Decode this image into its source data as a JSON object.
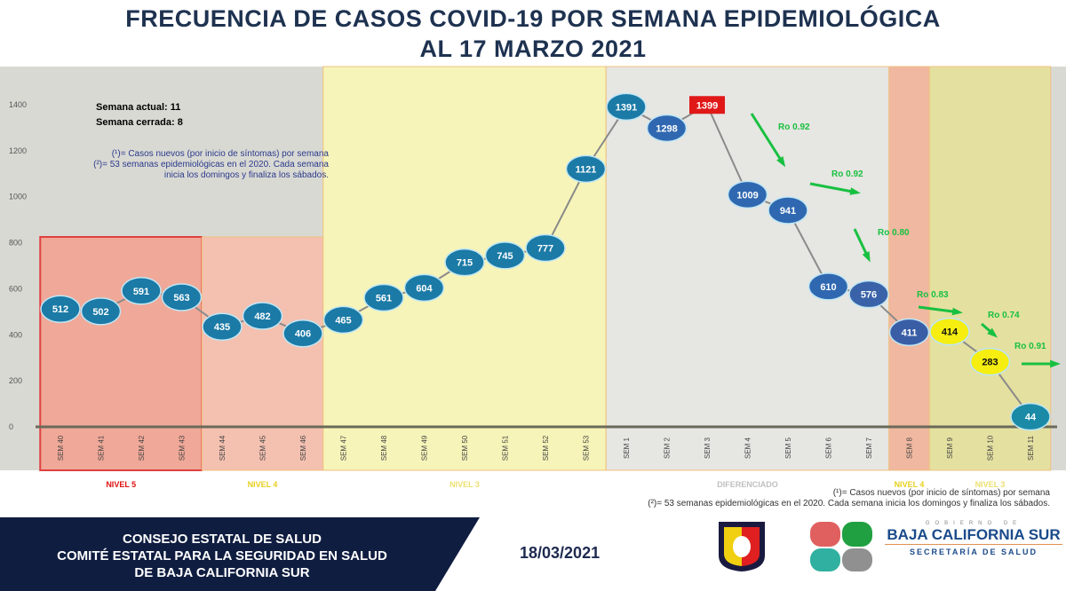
{
  "title_line1": "FRECUENCIA DE CASOS COVID-19 POR SEMANA EPIDEMIOLÓGICA",
  "title_line2": "AL 17 MARZO 2021",
  "info": {
    "semana_actual": "Semana actual: 11",
    "semana_cerrada": "Semana cerrada: 8",
    "note1": "(¹)= Casos nuevos (por inicio de síntomas) por semana",
    "note2a": "(²)= 53 semanas epidemiológicas en el 2020. Cada semana",
    "note2b": "inicia los domingos y finaliza los sábados.",
    "note2_full": "(²)= 53 semanas epidemiológicas en el 2020. Cada semana inicia los domingos y finaliza los sábados."
  },
  "chart_data": {
    "type": "line",
    "categories": [
      "SEM 40",
      "SEM 41",
      "SEM 42",
      "SEM 43",
      "SEM 44",
      "SEM 45",
      "SEM 46",
      "SEM 47",
      "SEM 48",
      "SEM 49",
      "SEM 50",
      "SEM 51",
      "SEM 52",
      "SEM 53",
      "SEM 1",
      "SEM 2",
      "SEM 3",
      "SEM 4",
      "SEM 5",
      "SEM 6",
      "SEM 7",
      "SEM 8",
      "SEM 9",
      "SEM 10",
      "SEM 11"
    ],
    "values": [
      512,
      502,
      591,
      563,
      435,
      482,
      406,
      465,
      561,
      604,
      715,
      745,
      777,
      1121,
      1391,
      1298,
      1399,
      1009,
      941,
      610,
      576,
      411,
      414,
      283,
      44
    ],
    "point_colors": [
      "#1b7aa6",
      "#1b7aa6",
      "#1b7aa6",
      "#1b7aa6",
      "#1b7aa6",
      "#1b7aa6",
      "#1b7aa6",
      "#1b7aa6",
      "#1b7aa6",
      "#1b7aa6",
      "#1b7aa6",
      "#1b7aa6",
      "#1b7aa6",
      "#1b7aa6",
      "#1b7aa6",
      "#2f68b0",
      "#e01818",
      "#2f68b0",
      "#2f68b0",
      "#2f68b0",
      "#3a62a8",
      "#3a5ea6",
      "#f5ee10",
      "#f5ee10",
      "#1b8aa6"
    ],
    "yticks": [
      0,
      200,
      400,
      600,
      800,
      1000,
      1200,
      1400
    ],
    "ylim": [
      0,
      1400
    ],
    "grid": false,
    "levels": [
      {
        "label": "NIVEL 5",
        "from": 0,
        "to": 3,
        "color": "#f0a898",
        "text_color": "#e01010"
      },
      {
        "label": "NIVEL 4",
        "from": 4,
        "to": 6,
        "color": "#f4c0b0",
        "text_color": "#e8d020"
      },
      {
        "label": "NIVEL 3",
        "from": 7,
        "to": 13,
        "color": "#f6f4b8",
        "text_color": "#ece070"
      },
      {
        "label": "DIFERENCIADO",
        "from": 14,
        "to": 20,
        "color": "#e6e6e2",
        "text_color": "#c0c0c0"
      },
      {
        "label": "NIVEL 4",
        "from": 21,
        "to": 21,
        "color": "#f0b8a0",
        "text_color": "#e8d020"
      },
      {
        "label": "NIVEL 3",
        "from": 22,
        "to": 24,
        "color": "#e4e0a0",
        "text_color": "#ece070"
      }
    ],
    "annotations": [
      "Ro 0.92",
      "Ro 0.92",
      "Ro 0.80",
      "Ro 0.83",
      "Ro 0.74",
      "Ro 0.91"
    ],
    "annotation_color": "#18c040"
  },
  "footer": {
    "line1": "CONSEJO ESTATAL DE SALUD",
    "line2": "COMITÉ ESTATAL PARA LA SEGURIDAD EN SALUD",
    "line3": "DE BAJA CALIFORNIA SUR",
    "date": "18/03/2021",
    "logo_gobierno": "GOBIERNO DE",
    "logo_main": "BAJA CALIFORNIA SUR",
    "logo_sub": "SECRETARÍA DE SALUD"
  }
}
